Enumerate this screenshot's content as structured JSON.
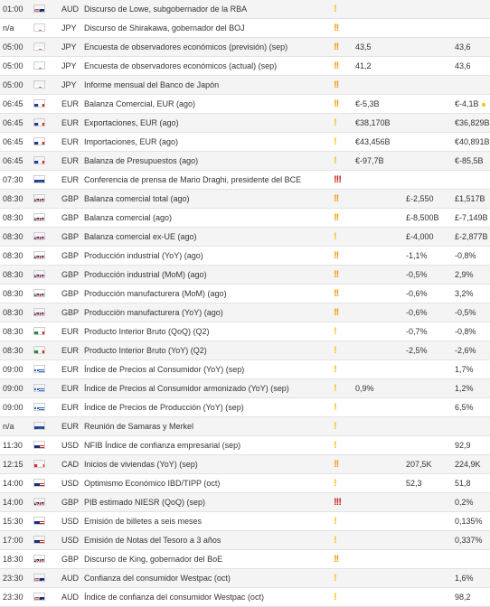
{
  "events": [
    {
      "time": "01:00",
      "country": "AU",
      "currency": "AUD",
      "event": "Discurso de Lowe, subgobernador de la RBA",
      "impact": "low",
      "actual": "",
      "forecast": "",
      "previous": ""
    },
    {
      "time": "n/a",
      "country": "JP",
      "currency": "JPY",
      "event": "Discurso de Shirakawa, gobernador del BOJ",
      "impact": "medium",
      "actual": "",
      "forecast": "",
      "previous": ""
    },
    {
      "time": "05:00",
      "country": "JP",
      "currency": "JPY",
      "event": "Encuesta de observadores económicos (previsión) (sep)",
      "impact": "medium",
      "actual": "43,5",
      "forecast": "",
      "previous": "43,6"
    },
    {
      "time": "05:00",
      "country": "JP",
      "currency": "JPY",
      "event": "Encuesta de observadores económicos (actual) (sep)",
      "impact": "medium",
      "actual": "41,2",
      "forecast": "",
      "previous": "43,6"
    },
    {
      "time": "05:00",
      "country": "JP",
      "currency": "JPY",
      "event": "Informe mensual del Banco de Japón",
      "impact": "medium",
      "actual": "",
      "forecast": "",
      "previous": ""
    },
    {
      "time": "06:45",
      "country": "FR",
      "currency": "EUR",
      "event": "Balanza Comercial, EUR (ago)",
      "impact": "medium",
      "actual": "€-5,3B",
      "forecast": "",
      "previous": "€-4,1B",
      "previous_dot": true
    },
    {
      "time": "06:45",
      "country": "FR",
      "currency": "EUR",
      "event": "Exportaciones, EUR (ago)",
      "impact": "low",
      "actual": "€38,170B",
      "forecast": "",
      "previous": "€36,829B"
    },
    {
      "time": "06:45",
      "country": "FR",
      "currency": "EUR",
      "event": "Importaciones, EUR (ago)",
      "impact": "low",
      "actual": "€43,456B",
      "forecast": "",
      "previous": "€40,891B"
    },
    {
      "time": "06:45",
      "country": "FR",
      "currency": "EUR",
      "event": "Balanza de Presupuestos (ago)",
      "impact": "low",
      "actual": "€-97,7B",
      "forecast": "",
      "previous": "€-85,5B"
    },
    {
      "time": "07:30",
      "country": "EU",
      "currency": "EUR",
      "event": "Conferencia de prensa de Mario Draghi, presidente del BCE",
      "impact": "high",
      "actual": "",
      "forecast": "",
      "previous": ""
    },
    {
      "time": "08:30",
      "country": "GB",
      "currency": "GBP",
      "event": "Balanza comercial total (ago)",
      "impact": "medium",
      "actual": "",
      "forecast": "£-2,550",
      "previous": "£1,517B"
    },
    {
      "time": "08:30",
      "country": "GB",
      "currency": "GBP",
      "event": "Balanza comercial (ago)",
      "impact": "medium",
      "actual": "",
      "forecast": "£-8,500B",
      "previous": "£-7,149B"
    },
    {
      "time": "08:30",
      "country": "GB",
      "currency": "GBP",
      "event": "Balanza comercial ex-UE (ago)",
      "impact": "low",
      "actual": "",
      "forecast": "£-4,000",
      "previous": "£-2,877B"
    },
    {
      "time": "08:30",
      "country": "GB",
      "currency": "GBP",
      "event": "Producción industrial (YoY) (ago)",
      "impact": "medium",
      "actual": "",
      "forecast": "-1,1%",
      "previous": "-0,8%"
    },
    {
      "time": "08:30",
      "country": "GB",
      "currency": "GBP",
      "event": "Producción industrial (MoM) (ago)",
      "impact": "medium",
      "actual": "",
      "forecast": "-0,5%",
      "previous": "2,9%"
    },
    {
      "time": "08:30",
      "country": "GB",
      "currency": "GBP",
      "event": "Producción manufacturera (MoM) (ago)",
      "impact": "medium",
      "actual": "",
      "forecast": "-0,6%",
      "previous": "3,2%"
    },
    {
      "time": "08:30",
      "country": "GB",
      "currency": "GBP",
      "event": "Producción manufacturera (YoY) (ago)",
      "impact": "medium",
      "actual": "",
      "forecast": "-0,6%",
      "previous": "-0,5%"
    },
    {
      "time": "08:30",
      "country": "IT",
      "currency": "EUR",
      "event": "Producto Interior Bruto (QoQ) (Q2)",
      "impact": "low",
      "actual": "",
      "forecast": "-0,7%",
      "previous": "-0,8%"
    },
    {
      "time": "08:30",
      "country": "IT",
      "currency": "EUR",
      "event": "Producto Interior Bruto (YoY) (Q2)",
      "impact": "low",
      "actual": "",
      "forecast": "-2,5%",
      "previous": "-2,6%"
    },
    {
      "time": "09:00",
      "country": "GR",
      "currency": "EUR",
      "event": "Índice de Precios al Consumidor (YoY) (sep)",
      "impact": "low",
      "actual": "",
      "forecast": "",
      "previous": "1,7%"
    },
    {
      "time": "09:00",
      "country": "GR",
      "currency": "EUR",
      "event": "Índice de Precios al Consumidor armonizado (YoY) (sep)",
      "impact": "low",
      "actual": "0,9%",
      "forecast": "",
      "previous": "1,2%"
    },
    {
      "time": "09:00",
      "country": "GR",
      "currency": "EUR",
      "event": "Índice de Precios de Producción (YoY) (sep)",
      "impact": "low",
      "actual": "",
      "forecast": "",
      "previous": "6,5%"
    },
    {
      "time": "n/a",
      "country": "EU",
      "currency": "EUR",
      "event": "Reunión de Samaras y Merkel",
      "impact": "low",
      "actual": "",
      "forecast": "",
      "previous": ""
    },
    {
      "time": "11:30",
      "country": "US",
      "currency": "USD",
      "event": "NFIB Índice de confianza empresarial (sep)",
      "impact": "low",
      "actual": "",
      "forecast": "",
      "previous": "92,9"
    },
    {
      "time": "12:15",
      "country": "CA",
      "currency": "CAD",
      "event": "Inicios de viviendas (YoY) (sep)",
      "impact": "medium",
      "actual": "",
      "forecast": "207,5K",
      "previous": "224,9K"
    },
    {
      "time": "14:00",
      "country": "US",
      "currency": "USD",
      "event": "Optimismo Económico IBD/TIPP (oct)",
      "impact": "low",
      "actual": "",
      "forecast": "52,3",
      "previous": "51,8"
    },
    {
      "time": "14:00",
      "country": "GB",
      "currency": "GBP",
      "event": "PIB estimado NIESR (QoQ) (sep)",
      "impact": "high",
      "actual": "",
      "forecast": "",
      "previous": "0,2%"
    },
    {
      "time": "15:30",
      "country": "US",
      "currency": "USD",
      "event": "Emisión de billetes a seis meses",
      "impact": "low",
      "actual": "",
      "forecast": "",
      "previous": "0,135%"
    },
    {
      "time": "17:00",
      "country": "US",
      "currency": "USD",
      "event": "Emisión de Notas del Tesoro a 3 años",
      "impact": "low",
      "actual": "",
      "forecast": "",
      "previous": "0,337%"
    },
    {
      "time": "18:30",
      "country": "GB",
      "currency": "GBP",
      "event": "Discurso de King, gobernador del BoE",
      "impact": "medium",
      "actual": "",
      "forecast": "",
      "previous": ""
    },
    {
      "time": "23:30",
      "country": "AU",
      "currency": "AUD",
      "event": "Confianza del consumidor Westpac (oct)",
      "impact": "low",
      "actual": "",
      "forecast": "",
      "previous": "1,6%"
    },
    {
      "time": "23:30",
      "country": "AU",
      "currency": "AUD",
      "event": "Índice de confianza del consumidor Westpac (oct)",
      "impact": "low",
      "actual": "",
      "forecast": "",
      "previous": "98,2"
    }
  ],
  "impact_glyphs": {
    "low": "!",
    "medium": "!!",
    "high": "!!!"
  },
  "colors": {
    "low": "#f0c419",
    "medium": "#f39c12",
    "high": "#c62828",
    "row_alt": "#f4f4f4",
    "border": "#e3e3e3"
  }
}
